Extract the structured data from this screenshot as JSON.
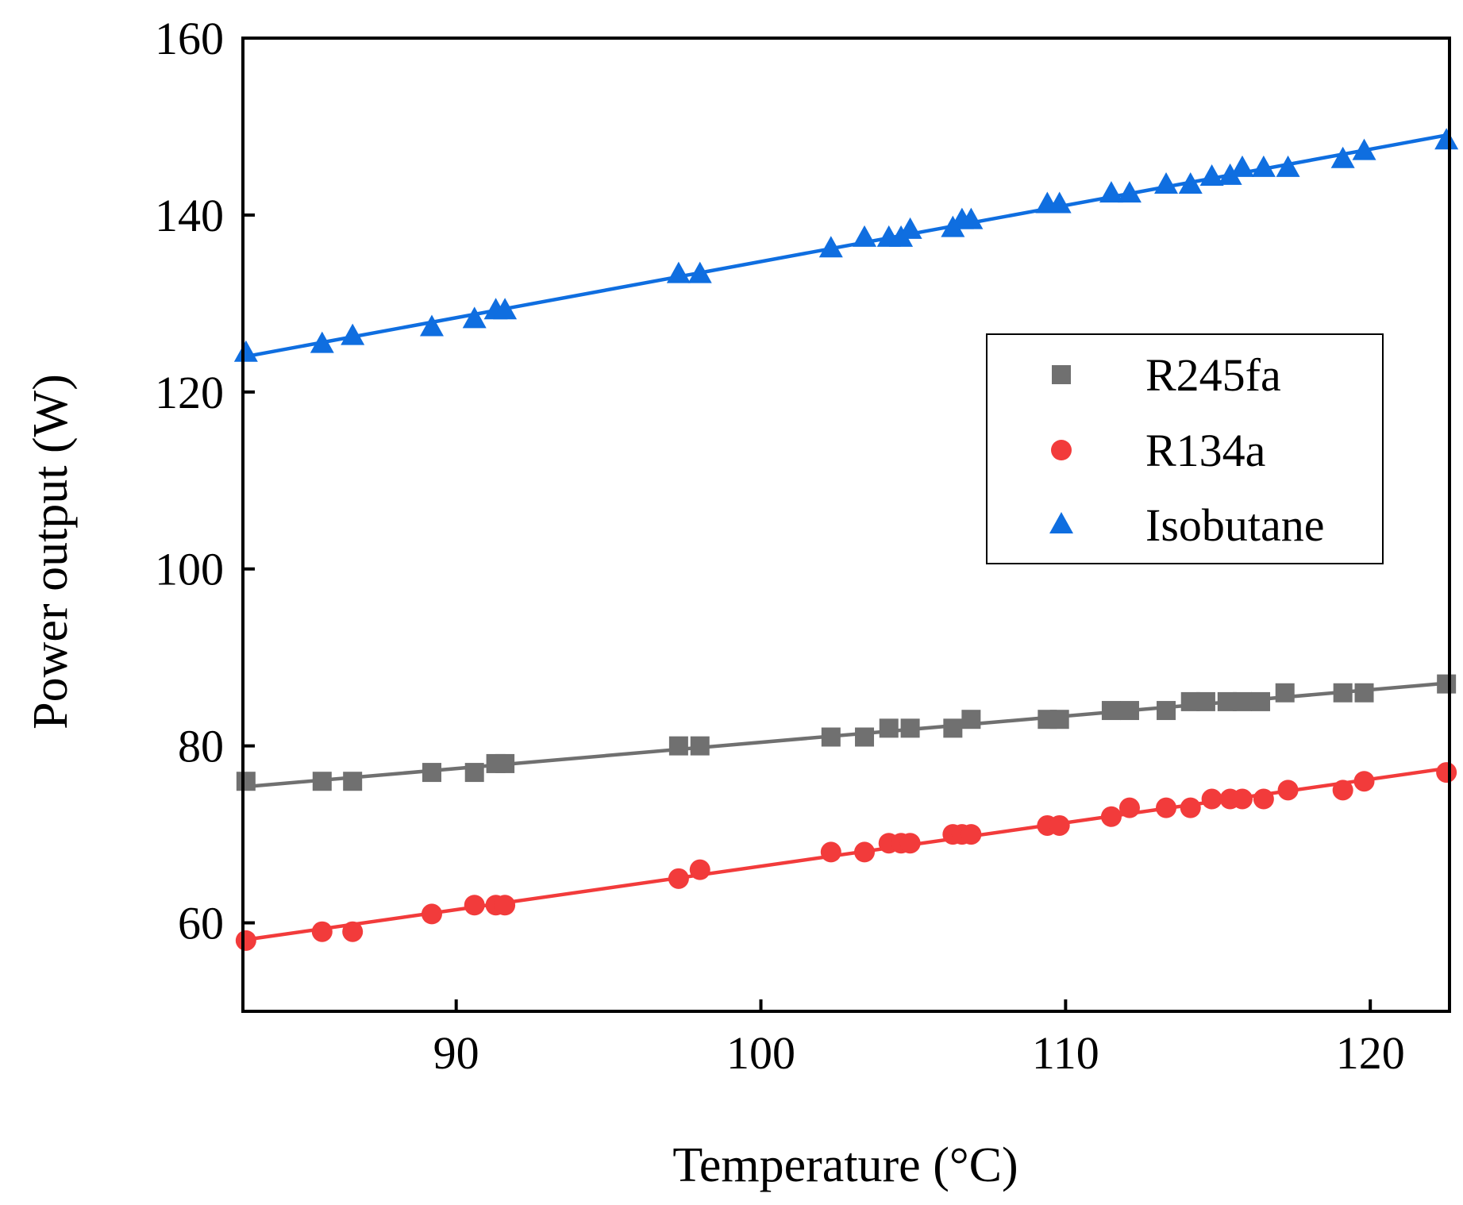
{
  "chart_data": {
    "type": "line",
    "title": "",
    "xlabel": "Temperature (°C)",
    "ylabel": "Power output (W)",
    "xlim": [
      83,
      122.6
    ],
    "ylim": [
      50,
      160
    ],
    "xticks": [
      90,
      100,
      110,
      120
    ],
    "yticks": [
      60,
      80,
      100,
      120,
      140,
      160
    ],
    "grid": false,
    "legend_position": "right",
    "series": [
      {
        "name": "R245fa",
        "marker": "square",
        "color": "#707070",
        "x": [
          83.1,
          85.6,
          86.6,
          89.2,
          90.6,
          91.3,
          91.6,
          97.3,
          98.0,
          102.3,
          103.4,
          104.2,
          104.9,
          106.3,
          106.9,
          109.4,
          109.8,
          111.5,
          112.1,
          113.3,
          114.1,
          114.6,
          115.3,
          115.8,
          116.4,
          117.2,
          119.1,
          119.8,
          122.5
        ],
        "values": [
          76,
          76,
          76,
          77,
          77,
          78,
          78,
          80,
          80,
          81,
          81,
          82,
          82,
          82,
          83,
          83,
          83,
          84,
          84,
          84,
          85,
          85,
          85,
          85,
          85,
          86,
          86,
          86,
          87
        ]
      },
      {
        "name": "R134a",
        "marker": "circle",
        "color": "#f23b3b",
        "x": [
          83.1,
          85.6,
          86.6,
          89.2,
          90.6,
          91.3,
          91.6,
          97.3,
          98.0,
          102.3,
          103.4,
          104.2,
          104.6,
          104.9,
          106.3,
          106.6,
          106.9,
          109.4,
          109.8,
          111.5,
          112.1,
          113.3,
          114.1,
          114.8,
          115.4,
          115.8,
          116.5,
          117.3,
          119.1,
          119.8,
          122.5
        ],
        "values": [
          58,
          59,
          59,
          61,
          62,
          62,
          62,
          65,
          66,
          68,
          68,
          69,
          69,
          69,
          70,
          70,
          70,
          71,
          71,
          72,
          73,
          73,
          73,
          74,
          74,
          74,
          74,
          75,
          75,
          76,
          77
        ]
      },
      {
        "name": "Isobutane",
        "marker": "triangle",
        "color": "#0f6ee0",
        "x": [
          83.1,
          85.6,
          86.6,
          89.2,
          90.6,
          91.3,
          91.6,
          97.3,
          98.0,
          102.3,
          103.4,
          104.2,
          104.6,
          104.9,
          106.3,
          106.6,
          106.9,
          109.4,
          109.8,
          111.5,
          112.1,
          113.3,
          114.1,
          114.8,
          115.4,
          115.8,
          116.5,
          117.3,
          119.1,
          119.8,
          122.5
        ],
        "values": [
          124.4,
          125.4,
          126.3,
          127.3,
          128.2,
          129.2,
          129.2,
          133.3,
          133.3,
          136.2,
          137.4,
          137.4,
          137.4,
          138.3,
          138.5,
          139.4,
          139.4,
          141.2,
          141.2,
          142.4,
          142.4,
          143.4,
          143.4,
          144.3,
          144.4,
          145.3,
          145.3,
          145.3,
          146.3,
          147.2,
          148.4
        ]
      }
    ]
  }
}
